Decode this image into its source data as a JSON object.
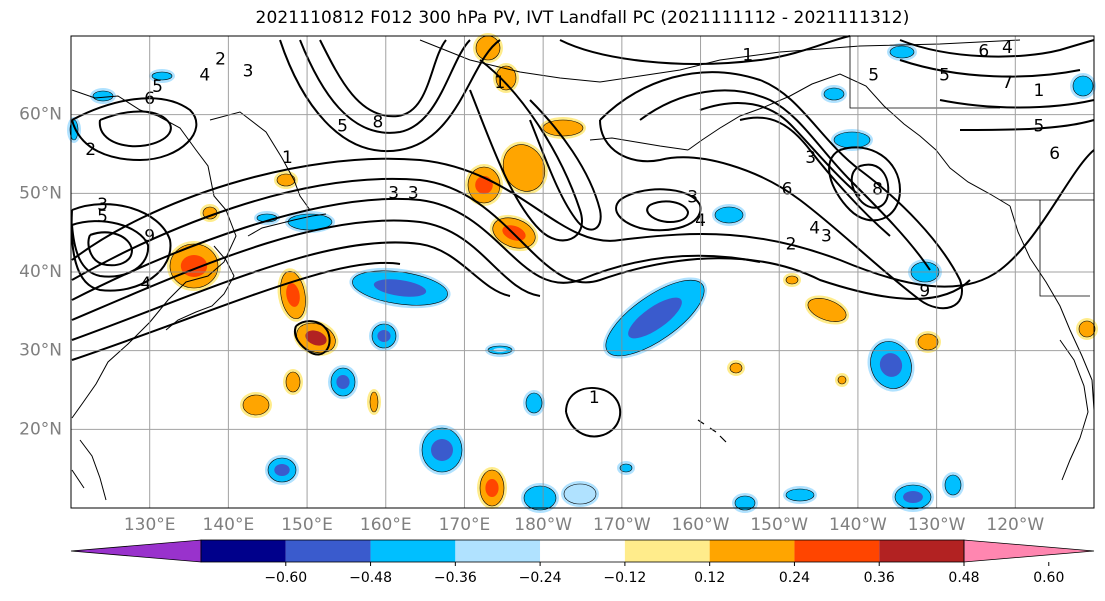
{
  "title": "2021110812 F012 300 hPa PV, IVT Landfall PC (2021111112 - 2021111312)",
  "map": {
    "projection": "PlateCarree",
    "lon_range": [
      120,
      250
    ],
    "lat_range": [
      10,
      70
    ],
    "lat_ticks": [
      {
        "value": 20,
        "label": "20°N"
      },
      {
        "value": 30,
        "label": "30°N"
      },
      {
        "value": 40,
        "label": "40°N"
      },
      {
        "value": 50,
        "label": "50°N"
      },
      {
        "value": 60,
        "label": "60°N"
      }
    ],
    "lon_ticks": [
      {
        "value": 130,
        "label": "130°E"
      },
      {
        "value": 140,
        "label": "140°E"
      },
      {
        "value": 150,
        "label": "150°E"
      },
      {
        "value": 160,
        "label": "160°E"
      },
      {
        "value": 170,
        "label": "170°E"
      },
      {
        "value": 180,
        "label": "180°W"
      },
      {
        "value": 190,
        "label": "170°W"
      },
      {
        "value": 200,
        "label": "160°W"
      },
      {
        "value": 210,
        "label": "150°W"
      },
      {
        "value": 220,
        "label": "140°W"
      },
      {
        "value": 230,
        "label": "130°W"
      },
      {
        "value": 240,
        "label": "120°W"
      }
    ],
    "grid": true,
    "contour_labels": [
      {
        "text": "2",
        "lon": 139,
        "lat": 67
      },
      {
        "text": "4",
        "lon": 137,
        "lat": 65
      },
      {
        "text": "3",
        "lon": 142.5,
        "lat": 65.5
      },
      {
        "text": "5",
        "lon": 131,
        "lat": 63.5
      },
      {
        "text": "6",
        "lon": 130,
        "lat": 62
      },
      {
        "text": "2",
        "lon": 122.5,
        "lat": 55.5
      },
      {
        "text": "3",
        "lon": 124,
        "lat": 48.5
      },
      {
        "text": "5",
        "lon": 124,
        "lat": 47
      },
      {
        "text": "9",
        "lon": 130,
        "lat": 44.5
      },
      {
        "text": "4",
        "lon": 129.5,
        "lat": 38.5
      },
      {
        "text": "1",
        "lon": 147.5,
        "lat": 54.5
      },
      {
        "text": "5",
        "lon": 154.5,
        "lat": 58.5
      },
      {
        "text": "8",
        "lon": 159,
        "lat": 59
      },
      {
        "text": "3",
        "lon": 161,
        "lat": 50
      },
      {
        "text": "3",
        "lon": 163.5,
        "lat": 50
      },
      {
        "text": "1",
        "lon": 174.5,
        "lat": 64
      },
      {
        "text": "1",
        "lon": 206,
        "lat": 67.5
      },
      {
        "text": "5",
        "lon": 222,
        "lat": 65
      },
      {
        "text": "6",
        "lon": 236,
        "lat": 68
      },
      {
        "text": "4",
        "lon": 239,
        "lat": 68.5
      },
      {
        "text": "5",
        "lon": 231,
        "lat": 65
      },
      {
        "text": "7",
        "lon": 239,
        "lat": 64
      },
      {
        "text": "1",
        "lon": 243,
        "lat": 63
      },
      {
        "text": "5",
        "lon": 243,
        "lat": 58.5
      },
      {
        "text": "6",
        "lon": 245,
        "lat": 55
      },
      {
        "text": "3",
        "lon": 214,
        "lat": 54.5
      },
      {
        "text": "3",
        "lon": 199,
        "lat": 49.5
      },
      {
        "text": "4",
        "lon": 200,
        "lat": 46.5
      },
      {
        "text": "6",
        "lon": 211,
        "lat": 50.5
      },
      {
        "text": "8",
        "lon": 222.5,
        "lat": 50.5
      },
      {
        "text": "4",
        "lon": 214.5,
        "lat": 45.5
      },
      {
        "text": "3",
        "lon": 216,
        "lat": 44.5
      },
      {
        "text": "2",
        "lon": 211.5,
        "lat": 43.5
      },
      {
        "text": "9",
        "lon": 228.5,
        "lat": 37.5
      },
      {
        "text": "1",
        "lon": 186.5,
        "lat": 24
      }
    ]
  },
  "colorbar": {
    "tick_labels": [
      "−0.60",
      "−0.48",
      "−0.36",
      "−0.24",
      "−0.12",
      "0.12",
      "0.24",
      "0.36",
      "0.48",
      "0.60"
    ],
    "levels": [
      -0.6,
      -0.48,
      -0.36,
      -0.24,
      -0.12,
      0.12,
      0.24,
      0.36,
      0.48,
      0.6
    ],
    "colors": [
      "#9932cc",
      "#00008b",
      "#3a5bcd",
      "#00bfff",
      "#b0e2ff",
      "#ffffff",
      "#ffec8b",
      "#ffa500",
      "#ff4500",
      "#b22222",
      "#ff86b0"
    ]
  }
}
